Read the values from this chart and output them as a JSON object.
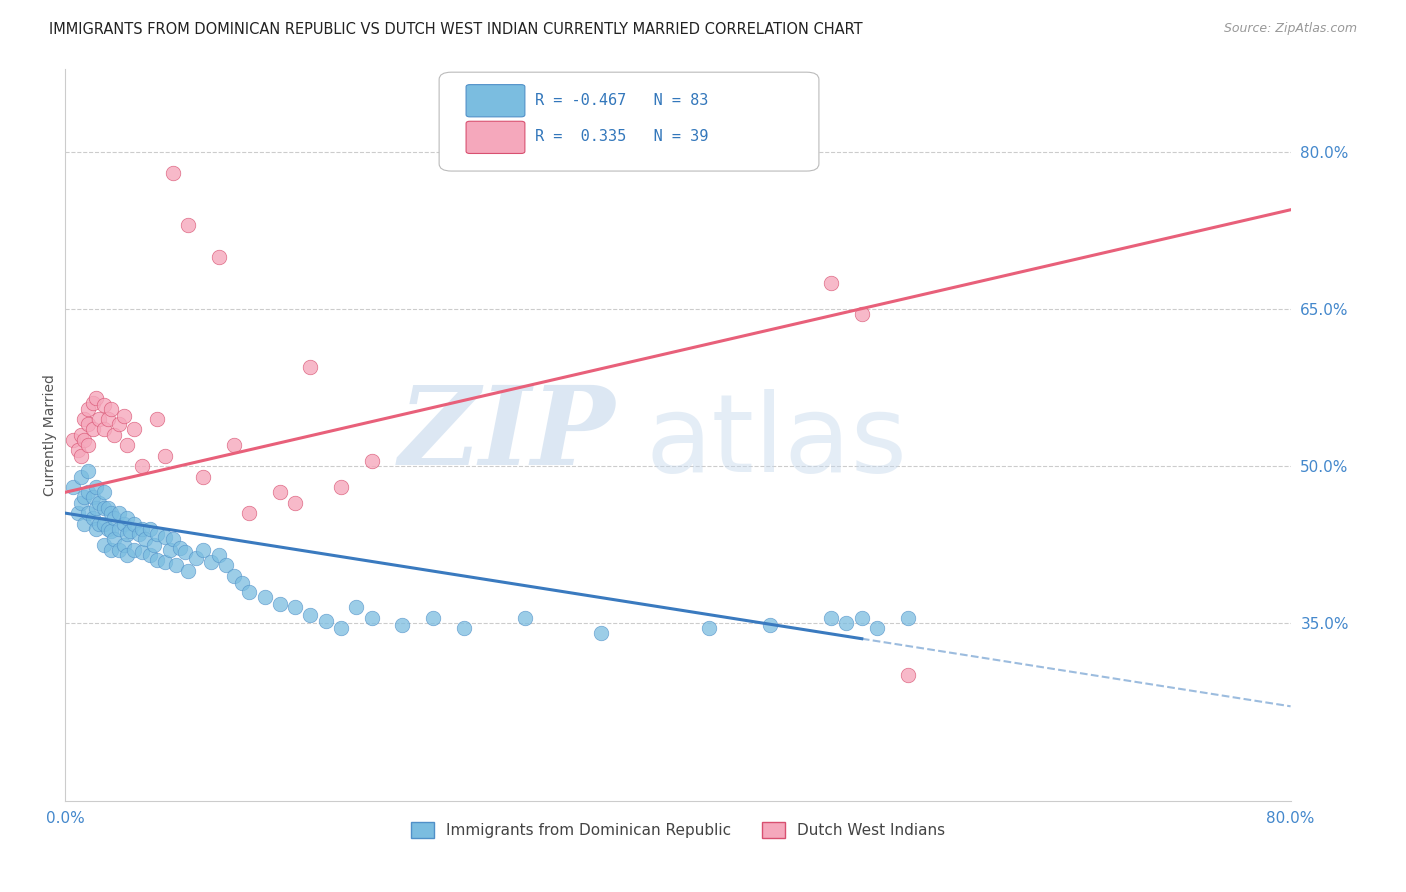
{
  "title": "IMMIGRANTS FROM DOMINICAN REPUBLIC VS DUTCH WEST INDIAN CURRENTLY MARRIED CORRELATION CHART",
  "source": "Source: ZipAtlas.com",
  "ylabel": "Currently Married",
  "ytick_labels": [
    "80.0%",
    "65.0%",
    "50.0%",
    "35.0%"
  ],
  "ytick_values": [
    0.8,
    0.65,
    0.5,
    0.35
  ],
  "xlim": [
    0.0,
    0.8
  ],
  "ylim": [
    0.18,
    0.88
  ],
  "blue_R": -0.467,
  "blue_N": 83,
  "pink_R": 0.335,
  "pink_N": 39,
  "blue_color": "#7bbde0",
  "pink_color": "#f5a8bc",
  "blue_line_color": "#3a7abf",
  "pink_line_color": "#e8607a",
  "blue_dot_edge": "#5090c8",
  "pink_dot_edge": "#d85070",
  "background_color": "#ffffff",
  "legend_label_blue": "Immigrants from Dominican Republic",
  "legend_label_pink": "Dutch West Indians",
  "blue_line_start_x": 0.0,
  "blue_line_end_solid_x": 0.52,
  "blue_line_end_dashed_x": 0.8,
  "blue_line_y0": 0.455,
  "blue_line_y1_solid": 0.335,
  "blue_line_y1_dashed": 0.24,
  "pink_line_y0": 0.475,
  "pink_line_y1": 0.745,
  "blue_scatter_x": [
    0.005,
    0.008,
    0.01,
    0.01,
    0.012,
    0.012,
    0.015,
    0.015,
    0.015,
    0.018,
    0.018,
    0.02,
    0.02,
    0.02,
    0.022,
    0.022,
    0.025,
    0.025,
    0.025,
    0.025,
    0.028,
    0.028,
    0.03,
    0.03,
    0.03,
    0.032,
    0.032,
    0.035,
    0.035,
    0.035,
    0.038,
    0.038,
    0.04,
    0.04,
    0.04,
    0.042,
    0.045,
    0.045,
    0.048,
    0.05,
    0.05,
    0.052,
    0.055,
    0.055,
    0.058,
    0.06,
    0.06,
    0.065,
    0.065,
    0.068,
    0.07,
    0.072,
    0.075,
    0.078,
    0.08,
    0.085,
    0.09,
    0.095,
    0.1,
    0.105,
    0.11,
    0.115,
    0.12,
    0.13,
    0.14,
    0.15,
    0.16,
    0.17,
    0.18,
    0.19,
    0.2,
    0.22,
    0.24,
    0.26,
    0.3,
    0.35,
    0.42,
    0.46,
    0.5,
    0.51,
    0.52,
    0.53,
    0.55
  ],
  "blue_scatter_y": [
    0.48,
    0.455,
    0.49,
    0.465,
    0.47,
    0.445,
    0.495,
    0.475,
    0.455,
    0.47,
    0.45,
    0.48,
    0.46,
    0.44,
    0.465,
    0.445,
    0.475,
    0.46,
    0.445,
    0.425,
    0.46,
    0.44,
    0.455,
    0.438,
    0.42,
    0.45,
    0.43,
    0.455,
    0.44,
    0.42,
    0.445,
    0.425,
    0.45,
    0.435,
    0.415,
    0.438,
    0.445,
    0.42,
    0.435,
    0.44,
    0.418,
    0.43,
    0.44,
    0.415,
    0.425,
    0.435,
    0.41,
    0.432,
    0.408,
    0.42,
    0.43,
    0.405,
    0.422,
    0.418,
    0.4,
    0.412,
    0.42,
    0.408,
    0.415,
    0.405,
    0.395,
    0.388,
    0.38,
    0.375,
    0.368,
    0.365,
    0.358,
    0.352,
    0.345,
    0.365,
    0.355,
    0.348,
    0.355,
    0.345,
    0.355,
    0.34,
    0.345,
    0.348,
    0.355,
    0.35,
    0.355,
    0.345,
    0.355
  ],
  "pink_scatter_x": [
    0.005,
    0.008,
    0.01,
    0.01,
    0.012,
    0.012,
    0.015,
    0.015,
    0.015,
    0.018,
    0.018,
    0.02,
    0.022,
    0.025,
    0.025,
    0.028,
    0.03,
    0.032,
    0.035,
    0.038,
    0.04,
    0.045,
    0.05,
    0.06,
    0.065,
    0.07,
    0.08,
    0.09,
    0.1,
    0.11,
    0.12,
    0.14,
    0.15,
    0.16,
    0.18,
    0.2,
    0.5,
    0.52,
    0.55
  ],
  "pink_scatter_y": [
    0.525,
    0.515,
    0.53,
    0.51,
    0.545,
    0.525,
    0.555,
    0.54,
    0.52,
    0.56,
    0.535,
    0.565,
    0.545,
    0.558,
    0.535,
    0.545,
    0.555,
    0.53,
    0.54,
    0.548,
    0.52,
    0.535,
    0.5,
    0.545,
    0.51,
    0.78,
    0.73,
    0.49,
    0.7,
    0.52,
    0.455,
    0.475,
    0.465,
    0.595,
    0.48,
    0.505,
    0.675,
    0.645,
    0.3
  ]
}
